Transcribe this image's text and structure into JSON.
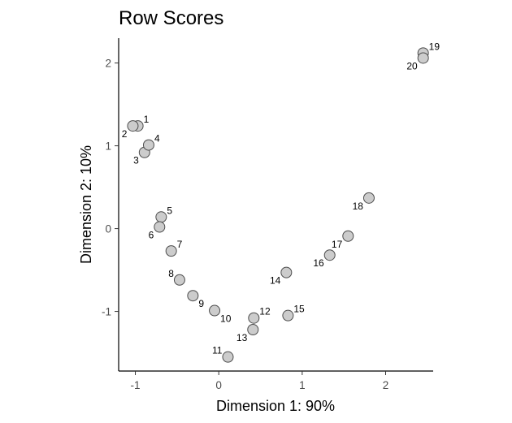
{
  "chart_data": {
    "type": "scatter",
    "title": "Row Scores",
    "xlabel": "Dimension 1:  90%",
    "ylabel": "Dimension 2:  10%",
    "xlim": [
      -1.2,
      2.57
    ],
    "ylim": [
      -1.72,
      2.3
    ],
    "xticks": [
      -1,
      0,
      1,
      2
    ],
    "yticks": [
      -1,
      0,
      1,
      2
    ],
    "xtick_labels": [
      "-1",
      "0",
      "1",
      "2"
    ],
    "ytick_labels": [
      "-1",
      "0",
      "1",
      "2"
    ],
    "grid": false,
    "legend": "none",
    "point_fill": "#cccccc",
    "point_stroke": "#4d4d4d",
    "points": [
      {
        "label": "1",
        "x": -0.97,
        "y": 1.24,
        "label_pos": "upper-right"
      },
      {
        "label": "2",
        "x": -1.03,
        "y": 1.24,
        "label_pos": "lower-left"
      },
      {
        "label": "3",
        "x": -0.89,
        "y": 0.92,
        "label_pos": "lower-left"
      },
      {
        "label": "4",
        "x": -0.84,
        "y": 1.01,
        "label_pos": "upper-right"
      },
      {
        "label": "5",
        "x": -0.69,
        "y": 0.14,
        "label_pos": "upper-right"
      },
      {
        "label": "6",
        "x": -0.71,
        "y": 0.02,
        "label_pos": "lower-left"
      },
      {
        "label": "7",
        "x": -0.57,
        "y": -0.27,
        "label_pos": "upper-right"
      },
      {
        "label": "8",
        "x": -0.47,
        "y": -0.62,
        "label_pos": "upper-left"
      },
      {
        "label": "9",
        "x": -0.31,
        "y": -0.81,
        "label_pos": "lower-right"
      },
      {
        "label": "10",
        "x": -0.05,
        "y": -0.99,
        "label_pos": "lower-right"
      },
      {
        "label": "11",
        "x": 0.11,
        "y": -1.55,
        "label_pos": "upper-left"
      },
      {
        "label": "12",
        "x": 0.42,
        "y": -1.08,
        "label_pos": "upper-right"
      },
      {
        "label": "13",
        "x": 0.41,
        "y": -1.22,
        "label_pos": "lower-left"
      },
      {
        "label": "14",
        "x": 0.81,
        "y": -0.53,
        "label_pos": "lower-left"
      },
      {
        "label": "15",
        "x": 0.83,
        "y": -1.05,
        "label_pos": "upper-right"
      },
      {
        "label": "16",
        "x": 1.33,
        "y": -0.32,
        "label_pos": "lower-left"
      },
      {
        "label": "17",
        "x": 1.55,
        "y": -0.09,
        "label_pos": "lower-left"
      },
      {
        "label": "18",
        "x": 1.8,
        "y": 0.37,
        "label_pos": "lower-left"
      },
      {
        "label": "19",
        "x": 2.45,
        "y": 2.12,
        "label_pos": "upper-right"
      },
      {
        "label": "20",
        "x": 2.45,
        "y": 2.06,
        "label_pos": "lower-left"
      }
    ]
  }
}
